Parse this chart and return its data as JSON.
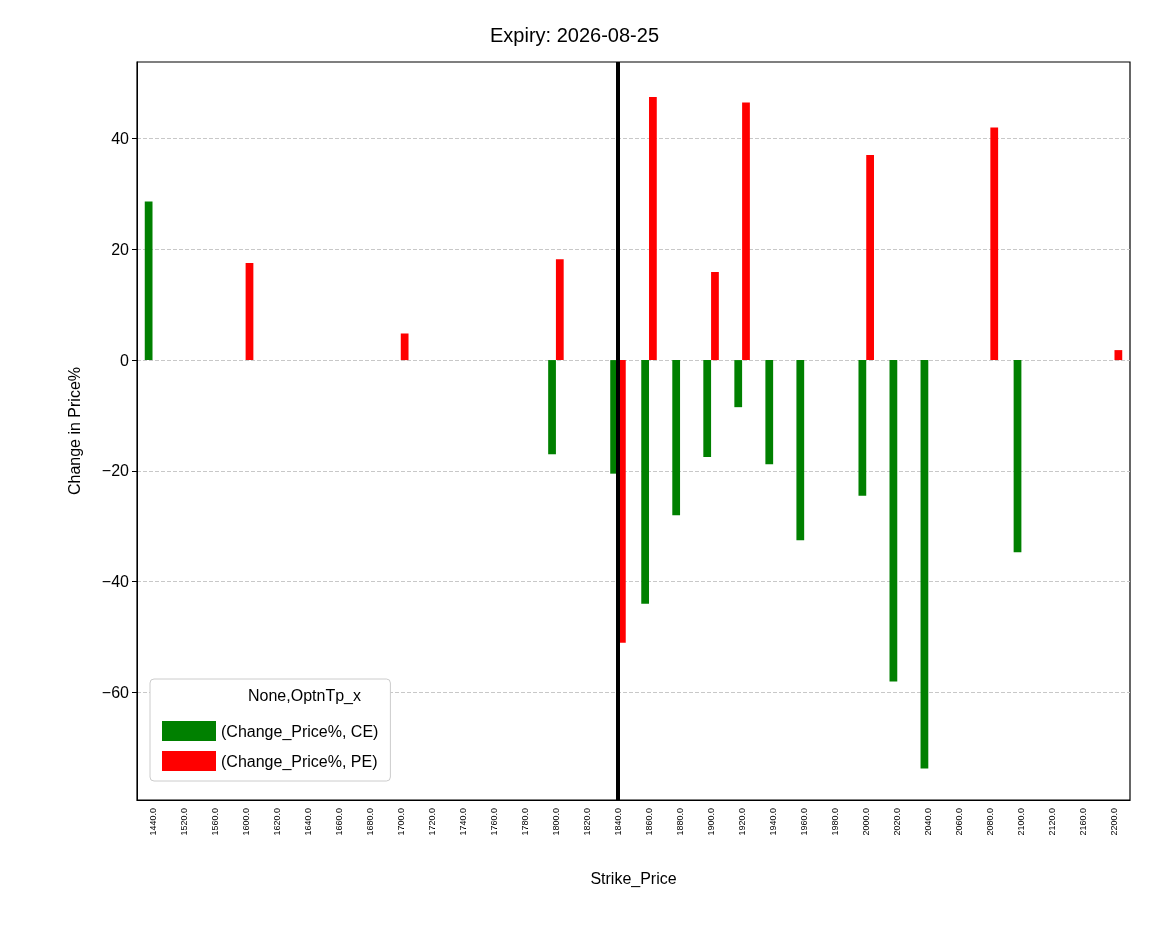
{
  "chart_data": {
    "type": "bar",
    "title": "Expiry: 2026-08-25",
    "xlabel": "Strike_Price",
    "ylabel": "Change in Price%",
    "legend_title": "None,OptnTp_x",
    "categories": [
      "1440.0",
      "1520.0",
      "1560.0",
      "1600.0",
      "1620.0",
      "1640.0",
      "1660.0",
      "1680.0",
      "1700.0",
      "1720.0",
      "1740.0",
      "1760.0",
      "1780.0",
      "1800.0",
      "1820.0",
      "1840.0",
      "1860.0",
      "1880.0",
      "1900.0",
      "1920.0",
      "1940.0",
      "1960.0",
      "1980.0",
      "2000.0",
      "2020.0",
      "2040.0",
      "2060.0",
      "2080.0",
      "2100.0",
      "2120.0",
      "2160.0",
      "2200.0"
    ],
    "series": [
      {
        "name": "(Change_Price%, CE)",
        "color": "#008000",
        "values": [
          28.6,
          null,
          null,
          null,
          null,
          null,
          null,
          null,
          null,
          null,
          null,
          null,
          null,
          -17,
          null,
          -20.5,
          -44,
          -28,
          -17.5,
          -8.5,
          -18.8,
          -32.5,
          null,
          -24.5,
          -58,
          -73.7,
          null,
          null,
          -34.7,
          null,
          null,
          null
        ]
      },
      {
        "name": "(Change_Price%, PE)",
        "color": "#ff0000",
        "values": [
          null,
          null,
          null,
          17.5,
          null,
          null,
          null,
          null,
          4.8,
          null,
          null,
          null,
          null,
          18.2,
          null,
          -51,
          47.5,
          null,
          15.9,
          46.5,
          null,
          null,
          null,
          37,
          null,
          null,
          null,
          42,
          null,
          null,
          null,
          1.8
        ]
      }
    ],
    "ylim": [
      -79.4,
      53.8
    ],
    "yticks": [
      -60,
      -40,
      -20,
      0,
      20,
      40
    ],
    "grid": "y",
    "legend": "bottom left",
    "ref_lines": [
      {
        "axis": "x",
        "value": "1840.0",
        "color": "#000000",
        "line_style": "solid"
      }
    ]
  }
}
